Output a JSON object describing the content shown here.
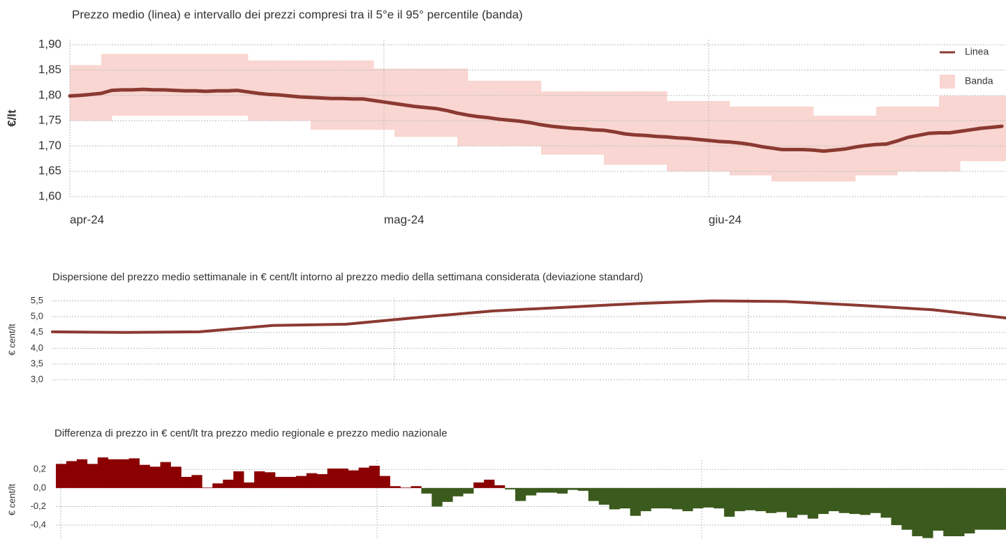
{
  "chart_data": [
    {
      "type": "line",
      "title": "Prezzo medio (linea) e intervallo dei prezzi compresi tra il 5°e il 95° percentile (banda)",
      "ylabel": "€/lt",
      "categories": [
        "apr-24",
        null,
        null,
        null,
        null,
        null,
        null,
        null,
        null,
        null,
        null,
        null,
        null,
        null,
        null,
        null,
        null,
        null,
        null,
        null,
        null,
        null,
        null,
        null,
        null,
        null,
        null,
        null,
        null,
        null,
        "mag-24",
        null,
        null,
        null,
        null,
        null,
        null,
        null,
        null,
        null,
        null,
        null,
        null,
        null,
        null,
        null,
        null,
        null,
        null,
        null,
        null,
        null,
        null,
        null,
        null,
        null,
        null,
        null,
        null,
        null,
        null,
        "giu-24",
        null,
        null,
        null,
        null,
        null,
        null,
        null,
        null,
        null,
        null,
        null,
        null,
        null,
        null,
        null,
        null,
        null,
        null,
        null,
        null,
        null,
        null,
        null,
        null,
        null,
        null,
        null,
        null
      ],
      "series": [
        {
          "name": "Linea",
          "color": "#8b3a32",
          "values": [
            1.799,
            1.8,
            1.802,
            1.804,
            1.81,
            1.811,
            1.811,
            1.812,
            1.811,
            1.811,
            1.81,
            1.809,
            1.809,
            1.808,
            1.809,
            1.809,
            1.81,
            1.807,
            1.804,
            1.802,
            1.801,
            1.799,
            1.797,
            1.796,
            1.795,
            1.794,
            1.794,
            1.793,
            1.793,
            1.79,
            1.787,
            1.784,
            1.781,
            1.778,
            1.776,
            1.774,
            1.77,
            1.765,
            1.761,
            1.758,
            1.756,
            1.753,
            1.751,
            1.749,
            1.746,
            1.742,
            1.739,
            1.737,
            1.735,
            1.734,
            1.732,
            1.731,
            1.728,
            1.724,
            1.722,
            1.721,
            1.719,
            1.718,
            1.716,
            1.715,
            1.713,
            1.711,
            1.709,
            1.708,
            1.706,
            1.703,
            1.699,
            1.696,
            1.693,
            1.693,
            1.693,
            1.692,
            1.69,
            1.692,
            1.694,
            1.698,
            1.701,
            1.703,
            1.704,
            1.71,
            1.717,
            1.721,
            1.725,
            1.726,
            1.726,
            1.729,
            1.732,
            1.735,
            1.737,
            1.739
          ]
        },
        {
          "name": "Banda",
          "color": "#f9d6d1",
          "upper": [
            1.86,
            1.86,
            1.86,
            1.882,
            1.882,
            1.882,
            1.882,
            1.882,
            1.882,
            1.882,
            1.882,
            1.882,
            1.882,
            1.882,
            1.882,
            1.882,
            1.882,
            1.869,
            1.869,
            1.869,
            1.869,
            1.869,
            1.869,
            1.869,
            1.869,
            1.869,
            1.869,
            1.869,
            1.869,
            1.853,
            1.853,
            1.853,
            1.853,
            1.853,
            1.853,
            1.853,
            1.853,
            1.853,
            1.829,
            1.829,
            1.829,
            1.829,
            1.829,
            1.829,
            1.829,
            1.808,
            1.808,
            1.808,
            1.808,
            1.808,
            1.808,
            1.808,
            1.808,
            1.808,
            1.808,
            1.808,
            1.808,
            1.789,
            1.789,
            1.789,
            1.789,
            1.789,
            1.789,
            1.778,
            1.778,
            1.778,
            1.778,
            1.778,
            1.778,
            1.778,
            1.778,
            1.76,
            1.76,
            1.76,
            1.76,
            1.76,
            1.76,
            1.778,
            1.778,
            1.778,
            1.778,
            1.778,
            1.778,
            1.799,
            1.799,
            1.799,
            1.799,
            1.799,
            1.799,
            1.799
          ],
          "lower": [
            1.75,
            1.75,
            1.75,
            1.75,
            1.76,
            1.76,
            1.76,
            1.76,
            1.76,
            1.76,
            1.76,
            1.76,
            1.76,
            1.76,
            1.76,
            1.76,
            1.76,
            1.75,
            1.75,
            1.75,
            1.75,
            1.75,
            1.75,
            1.732,
            1.732,
            1.732,
            1.732,
            1.732,
            1.732,
            1.732,
            1.732,
            1.718,
            1.718,
            1.718,
            1.718,
            1.718,
            1.718,
            1.7,
            1.7,
            1.7,
            1.7,
            1.7,
            1.7,
            1.7,
            1.7,
            1.683,
            1.683,
            1.683,
            1.683,
            1.683,
            1.683,
            1.663,
            1.663,
            1.663,
            1.663,
            1.663,
            1.663,
            1.65,
            1.65,
            1.65,
            1.65,
            1.65,
            1.65,
            1.642,
            1.642,
            1.642,
            1.642,
            1.63,
            1.63,
            1.63,
            1.63,
            1.63,
            1.63,
            1.63,
            1.63,
            1.642,
            1.642,
            1.642,
            1.642,
            1.65,
            1.65,
            1.65,
            1.65,
            1.65,
            1.65,
            1.67,
            1.67,
            1.67,
            1.67,
            1.67
          ]
        }
      ],
      "ylim": [
        1.6,
        1.91
      ],
      "yticks": [
        {
          "value": 1.6,
          "label": "1,60"
        },
        {
          "value": 1.65,
          "label": "1,65"
        },
        {
          "value": 1.7,
          "label": "1,70"
        },
        {
          "value": 1.75,
          "label": "1,75"
        },
        {
          "value": 1.8,
          "label": "1,80"
        },
        {
          "value": 1.85,
          "label": "1,85"
        },
        {
          "value": 1.9,
          "label": "1,90"
        }
      ],
      "grid": true,
      "legend": "top-right"
    },
    {
      "type": "line",
      "title": "Dispersione del prezzo medio settimanale in € cent/lt intorno al prezzo medio della settimana considerata (deviazione standard)",
      "ylabel": "€ cent/lt",
      "values": [
        4.52,
        4.5,
        4.52,
        4.72,
        4.76,
        4.98,
        5.18,
        5.3,
        5.42,
        5.5,
        5.48,
        5.36,
        5.22,
        4.96
      ],
      "color": "#8b3a32",
      "ylim": [
        2.95,
        5.6
      ],
      "yticks": [
        {
          "value": 3.0,
          "label": "3,0"
        },
        {
          "value": 3.5,
          "label": "3,5"
        },
        {
          "value": 4.0,
          "label": "4,0"
        },
        {
          "value": 4.5,
          "label": "4,5"
        },
        {
          "value": 5.0,
          "label": "5,0"
        },
        {
          "value": 5.5,
          "label": "5,5"
        }
      ],
      "grid": true
    },
    {
      "type": "bar",
      "title": "Differenza di prezzo in € cent/lt tra prezzo medio regionale e prezzo medio nazionale",
      "ylabel": "€ cent/lt",
      "values": [
        0.26,
        0.29,
        0.31,
        0.26,
        0.33,
        0.31,
        0.31,
        0.32,
        0.25,
        0.23,
        0.28,
        0.23,
        0.12,
        0.14,
        0.005,
        0.05,
        0.09,
        0.18,
        0.06,
        0.18,
        0.17,
        0.12,
        0.12,
        0.13,
        0.16,
        0.15,
        0.21,
        0.21,
        0.19,
        0.22,
        0.24,
        0.13,
        0.02,
        0.005,
        0.02,
        -0.06,
        -0.2,
        -0.15,
        -0.09,
        -0.06,
        0.06,
        0.09,
        0.03,
        -0.015,
        -0.14,
        -0.08,
        -0.05,
        -0.05,
        -0.06,
        -0.02,
        -0.03,
        -0.14,
        -0.18,
        -0.23,
        -0.22,
        -0.3,
        -0.25,
        -0.22,
        -0.22,
        -0.23,
        -0.25,
        -0.22,
        -0.21,
        -0.22,
        -0.31,
        -0.25,
        -0.24,
        -0.25,
        -0.27,
        -0.26,
        -0.32,
        -0.29,
        -0.33,
        -0.28,
        -0.25,
        -0.27,
        -0.28,
        -0.29,
        -0.27,
        -0.32,
        -0.4,
        -0.45,
        -0.52,
        -0.54,
        -0.46,
        -0.52,
        -0.52,
        -0.49,
        -0.45,
        -0.45,
        -0.45
      ],
      "positive_color": "#8b0000",
      "negative_color": "#3b5a1d",
      "ylim": [
        -0.55,
        0.3
      ],
      "yticks": [
        {
          "value": -0.4,
          "label": "-0,4"
        },
        {
          "value": -0.2,
          "label": "-0,2"
        },
        {
          "value": 0.0,
          "label": "0,0"
        },
        {
          "value": 0.2,
          "label": "0,2"
        }
      ],
      "grid": true
    }
  ]
}
